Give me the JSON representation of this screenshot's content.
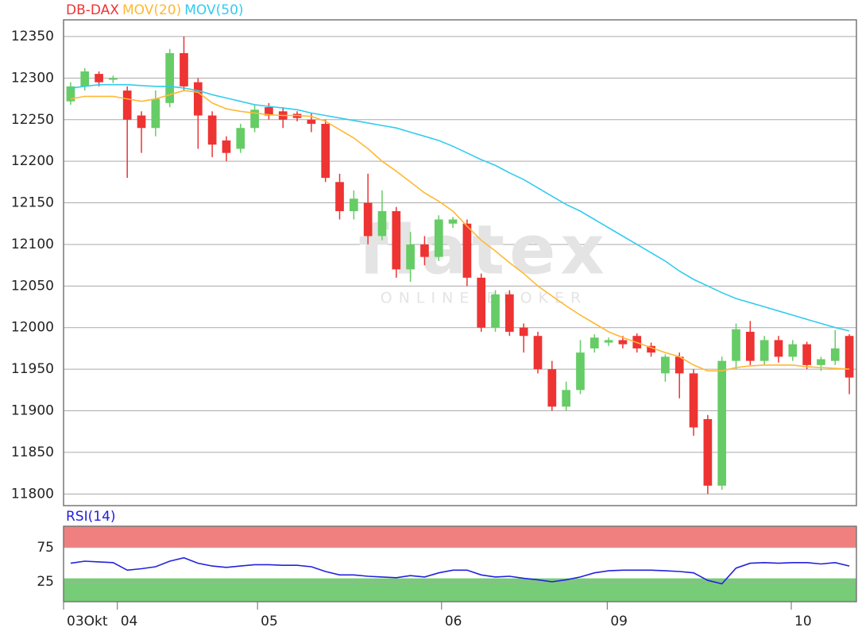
{
  "chart_data": [
    {
      "type": "candlestick",
      "xlim": [
        0,
        56
      ],
      "ylim": [
        11786,
        12370
      ],
      "yticks": [
        11800,
        11850,
        11900,
        11950,
        12000,
        12050,
        12100,
        12150,
        12200,
        12250,
        12300,
        12350
      ],
      "grid": true,
      "watermark": {
        "brand": "flatex",
        "tagline": "ONLINE BROKER"
      },
      "series": [
        {
          "name": "DB-DAX",
          "color": "#ee3333",
          "up_color": "#66cc66",
          "down_color": "#ee3333",
          "open": [
            12272,
            12290,
            12305,
            12298,
            12285,
            12255,
            12240,
            12270,
            12330,
            12295,
            12255,
            12225,
            12215,
            12240,
            12265,
            12260,
            12257,
            12250,
            12245,
            12175,
            12140,
            12150,
            12110,
            12140,
            12070,
            12100,
            12085,
            12125,
            12125,
            12060,
            12000,
            12040,
            12000,
            11990,
            11950,
            11905,
            11925,
            11975,
            11982,
            11985,
            11990,
            11978,
            11945,
            11965,
            11945,
            11890,
            11810,
            11960,
            11995,
            11960,
            11985,
            11965,
            11980,
            11955,
            11960,
            11990
          ],
          "high": [
            12295,
            12312,
            12308,
            12303,
            12290,
            12260,
            12285,
            12335,
            12350,
            12300,
            12260,
            12230,
            12245,
            12268,
            12270,
            12265,
            12260,
            12258,
            12250,
            12185,
            12165,
            12185,
            12165,
            12145,
            12115,
            12110,
            12135,
            12133,
            12130,
            12065,
            12045,
            12045,
            12005,
            11995,
            11960,
            11935,
            11985,
            11992,
            11988,
            11990,
            11993,
            11982,
            11968,
            11970,
            11950,
            11895,
            11965,
            12005,
            12008,
            11990,
            11990,
            11985,
            11983,
            11965,
            11997,
            11992
          ],
          "low": [
            12268,
            12285,
            12290,
            12294,
            12180,
            12210,
            12230,
            12265,
            12285,
            12215,
            12205,
            12200,
            12210,
            12235,
            12250,
            12240,
            12248,
            12235,
            12175,
            12130,
            12130,
            12100,
            12105,
            12060,
            12055,
            12075,
            12080,
            12120,
            12050,
            11995,
            11995,
            11990,
            11970,
            11945,
            11900,
            11900,
            11920,
            11970,
            11978,
            11975,
            11970,
            11965,
            11935,
            11915,
            11870,
            11800,
            11805,
            11950,
            11955,
            11955,
            11958,
            11960,
            11950,
            11948,
            11955,
            11920
          ],
          "close": [
            12290,
            12308,
            12295,
            12300,
            12250,
            12240,
            12275,
            12330,
            12290,
            12255,
            12220,
            12210,
            12240,
            12262,
            12255,
            12250,
            12252,
            12245,
            12180,
            12140,
            12155,
            12110,
            12140,
            12070,
            12100,
            12085,
            12130,
            12130,
            12060,
            12000,
            12040,
            11995,
            11990,
            11950,
            11905,
            11925,
            11970,
            11988,
            11985,
            11980,
            11975,
            11970,
            11965,
            11945,
            11880,
            11810,
            11960,
            11998,
            11960,
            11985,
            11965,
            11980,
            11955,
            11962,
            11975,
            11940
          ]
        },
        {
          "name": "MOV(20)",
          "color": "#ffb833",
          "values": [
            12275,
            12278,
            12278,
            12278,
            12275,
            12272,
            12275,
            12280,
            12285,
            12283,
            12270,
            12263,
            12260,
            12258,
            12256,
            12255,
            12255,
            12254,
            12248,
            12238,
            12228,
            12215,
            12200,
            12188,
            12175,
            12162,
            12152,
            12140,
            12122,
            12105,
            12092,
            12078,
            12065,
            12050,
            12038,
            12026,
            12015,
            12005,
            11995,
            11988,
            11982,
            11976,
            11970,
            11965,
            11955,
            11948,
            11948,
            11952,
            11954,
            11955,
            11955,
            11955,
            11953,
            11952,
            11951,
            11950
          ]
        },
        {
          "name": "MOV(50)",
          "color": "#33ccee",
          "values": [
            12288,
            12290,
            12292,
            12292,
            12292,
            12291,
            12290,
            12290,
            12288,
            12285,
            12280,
            12276,
            12272,
            12268,
            12266,
            12264,
            12262,
            12258,
            12255,
            12252,
            12249,
            12246,
            12243,
            12240,
            12235,
            12230,
            12225,
            12218,
            12210,
            12202,
            12195,
            12186,
            12178,
            12168,
            12158,
            12148,
            12140,
            12130,
            12120,
            12110,
            12100,
            12090,
            12080,
            12068,
            12058,
            12050,
            12042,
            12035,
            12030,
            12025,
            12020,
            12015,
            12010,
            12005,
            12000,
            11996
          ]
        }
      ]
    },
    {
      "type": "line",
      "xlim": [
        0,
        56
      ],
      "ylim": [
        -4,
        106
      ],
      "yticks": [
        25,
        75
      ],
      "upper_band": {
        "from": 75,
        "color": "#f08080"
      },
      "lower_band": {
        "to": 30,
        "color": "#77cc77"
      },
      "xticks": [
        {
          "value": 0,
          "label": "03Okt"
        },
        {
          "value": 3.8,
          "label": "04"
        },
        {
          "value": 13.7,
          "label": "05"
        },
        {
          "value": 26.7,
          "label": "06"
        },
        {
          "value": 38.4,
          "label": "09"
        },
        {
          "value": 51.4,
          "label": "10"
        }
      ],
      "series": [
        {
          "name": "RSI(14)",
          "color": "#2222dd",
          "values": [
            52,
            55,
            54,
            53,
            42,
            44,
            47,
            55,
            60,
            52,
            48,
            46,
            48,
            50,
            50,
            49,
            49,
            47,
            40,
            35,
            35,
            33,
            32,
            31,
            34,
            32,
            38,
            42,
            42,
            35,
            32,
            33,
            30,
            28,
            25,
            28,
            32,
            38,
            41,
            42,
            42,
            42,
            41,
            40,
            38,
            27,
            22,
            45,
            52,
            53,
            52,
            53,
            53,
            51,
            53,
            48
          ]
        }
      ]
    }
  ]
}
